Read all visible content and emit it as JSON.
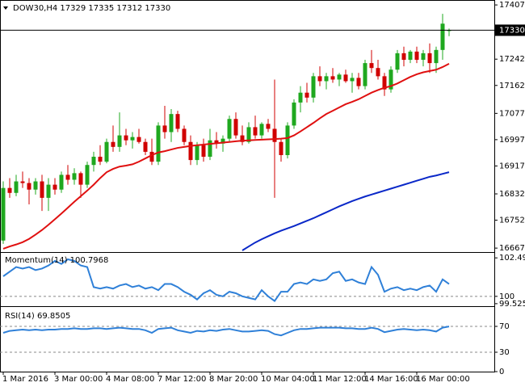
{
  "chart_data": [
    {
      "type": "candlestick",
      "title": "DOW30,H4  17329 17335 17312 17330",
      "categories": [
        "1 Mar 2016",
        null,
        null,
        null,
        null,
        null,
        null,
        null,
        "3 Mar 00:00",
        null,
        null,
        null,
        null,
        null,
        null,
        null,
        "4 Mar 08:00",
        null,
        null,
        null,
        null,
        null,
        null,
        null,
        "7 Mar 12:00",
        null,
        null,
        null,
        null,
        null,
        null,
        null,
        "8 Mar 20:00",
        null,
        null,
        null,
        null,
        null,
        null,
        null,
        "10 Mar 04:00",
        null,
        null,
        null,
        null,
        null,
        null,
        null,
        "11 Mar 12:00",
        null,
        null,
        null,
        null,
        null,
        null,
        null,
        "14 Mar 16:00",
        null,
        null,
        null,
        null,
        null,
        null,
        null,
        "16 Mar 00:00",
        null,
        null,
        null,
        null,
        null
      ],
      "open": [
        16690,
        16850,
        16835,
        16870,
        16865,
        16845,
        16870,
        16820,
        16860,
        16845,
        16890,
        16875,
        16895,
        16860,
        16920,
        16945,
        16930,
        16990,
        16975,
        17010,
        16995,
        17005,
        16990,
        16960,
        16930,
        17040,
        17020,
        17075,
        17030,
        16990,
        16935,
        16980,
        16945,
        16995,
        16985,
        17000,
        17060,
        17010,
        16990,
        17035,
        17010,
        17045,
        17030,
        16990,
        16950,
        17040,
        17110,
        17140,
        17125,
        17190,
        17175,
        17190,
        17180,
        17195,
        17175,
        17185,
        17160,
        17230,
        17215,
        17190,
        17150,
        17210,
        17260,
        17240,
        17265,
        17240,
        17260,
        17230,
        17270,
        17329
      ],
      "high": [
        16870,
        16880,
        16890,
        16900,
        16880,
        16880,
        16890,
        16880,
        16880,
        16900,
        16920,
        16910,
        16900,
        16930,
        16960,
        16980,
        17000,
        17040,
        17080,
        17030,
        17020,
        17030,
        17000,
        17000,
        17050,
        17100,
        17090,
        17085,
        17040,
        17010,
        16990,
        17000,
        17030,
        17020,
        17010,
        17070,
        17080,
        17040,
        17050,
        17070,
        17050,
        17060,
        17180,
        17000,
        17050,
        17120,
        17160,
        17170,
        17200,
        17220,
        17200,
        17215,
        17200,
        17210,
        17200,
        17200,
        17240,
        17270,
        17240,
        17200,
        17220,
        17270,
        17280,
        17270,
        17280,
        17270,
        17290,
        17280,
        17380,
        17335
      ],
      "low": [
        16680,
        16820,
        16825,
        16850,
        16800,
        16830,
        16780,
        16780,
        16830,
        16835,
        16860,
        16860,
        16820,
        16850,
        16900,
        16920,
        16925,
        16960,
        16960,
        16980,
        16970,
        16985,
        16950,
        16920,
        16920,
        17000,
        16990,
        17020,
        16980,
        16920,
        16920,
        16930,
        16935,
        16970,
        16960,
        16990,
        17000,
        16980,
        16985,
        17000,
        17000,
        17020,
        16820,
        16930,
        16940,
        17030,
        17080,
        17110,
        17110,
        17160,
        17150,
        17170,
        17160,
        17170,
        17140,
        17150,
        17150,
        17200,
        17180,
        17130,
        17140,
        17200,
        17220,
        17230,
        17230,
        17220,
        17200,
        17200,
        17240,
        17312
      ],
      "close": [
        16850,
        16835,
        16870,
        16865,
        16845,
        16870,
        16820,
        16860,
        16845,
        16890,
        16875,
        16895,
        16860,
        16920,
        16945,
        16930,
        16990,
        16975,
        17010,
        16995,
        17005,
        16990,
        16960,
        16930,
        17040,
        17020,
        17075,
        17030,
        16990,
        16935,
        16980,
        16945,
        16995,
        16985,
        17000,
        17060,
        17010,
        16990,
        17035,
        17010,
        17045,
        17030,
        16990,
        16950,
        17040,
        17110,
        17140,
        17125,
        17190,
        17175,
        17190,
        17180,
        17195,
        17175,
        17185,
        17160,
        17230,
        17215,
        17190,
        17150,
        17210,
        17260,
        17240,
        17265,
        17240,
        17260,
        17230,
        17270,
        17350,
        17330
      ],
      "up_color": "#1fa81f",
      "down_color": "#d00000",
      "series": [
        {
          "color": "#e01010",
          "values": [
            16665,
            16672,
            16678,
            16685,
            16695,
            16708,
            16722,
            16738,
            16755,
            16772,
            16790,
            16808,
            16825,
            16842,
            16860,
            16880,
            16898,
            16908,
            16915,
            16918,
            16922,
            16930,
            16940,
            16950,
            16958,
            16962,
            16967,
            16972,
            16975,
            16978,
            16980,
            16982,
            16984,
            16986,
            16988,
            16990,
            16992,
            16994,
            16995,
            16996,
            16997,
            16998,
            16999,
            17000,
            17002,
            17010,
            17022,
            17035,
            17048,
            17062,
            17075,
            17085,
            17095,
            17105,
            17112,
            17120,
            17130,
            17140,
            17148,
            17155,
            17160,
            17168,
            17178,
            17188,
            17196,
            17202,
            17206,
            17210,
            17218,
            17228
          ]
        },
        {
          "color": "#0a28c8",
          "values": [
            null,
            null,
            null,
            null,
            null,
            null,
            null,
            null,
            null,
            null,
            null,
            null,
            null,
            null,
            null,
            null,
            null,
            null,
            null,
            null,
            null,
            null,
            null,
            null,
            null,
            null,
            null,
            null,
            null,
            null,
            null,
            null,
            null,
            null,
            null,
            null,
            null,
            16660,
            16672,
            16684,
            16694,
            16703,
            16712,
            16720,
            16727,
            16734,
            16742,
            16750,
            16758,
            16767,
            16776,
            16785,
            16794,
            16802,
            16810,
            16817,
            16824,
            16830,
            16836,
            16842,
            16848,
            16854,
            16860,
            16866,
            16872,
            16878,
            16884,
            16888,
            16893,
            16898
          ]
        }
      ],
      "last_price": 17330,
      "ylim": [
        16655,
        17422
      ],
      "yticks": [
        17407,
        17242,
        17162,
        17077,
        16997,
        16917,
        16832,
        16752,
        16667
      ]
    },
    {
      "type": "line",
      "title": "Momentum(14) 100.7968",
      "series": [
        {
          "color": "#2f80d8",
          "values": [
            101.3,
            101.6,
            101.9,
            101.8,
            101.9,
            101.7,
            101.8,
            102.0,
            102.3,
            102.1,
            102.4,
            102.3,
            102.0,
            101.9,
            100.6,
            100.5,
            100.6,
            100.5,
            100.7,
            100.8,
            100.6,
            100.7,
            100.5,
            100.6,
            100.4,
            100.8,
            100.8,
            100.6,
            100.3,
            100.1,
            99.8,
            100.2,
            100.4,
            100.1,
            100.0,
            100.3,
            100.2,
            100.0,
            99.9,
            99.8,
            100.4,
            100.0,
            99.7,
            100.3,
            100.3,
            100.8,
            100.9,
            100.8,
            101.1,
            101.0,
            101.1,
            101.5,
            101.6,
            101.0,
            101.1,
            100.9,
            100.8,
            101.9,
            101.4,
            100.3,
            100.5,
            100.6,
            100.4,
            100.5,
            100.4,
            100.6,
            100.7,
            100.3,
            101.1,
            100.7968
          ]
        }
      ],
      "levels": [
        100
      ],
      "ylim": [
        99.363,
        102.818
      ],
      "yticks": [
        102.4932,
        100,
        99.5253
      ]
    },
    {
      "type": "line",
      "title": "RSI(14) 69.8505",
      "series": [
        {
          "color": "#2f80d8",
          "values": [
            60,
            63,
            64,
            65,
            64,
            65,
            64,
            65,
            65,
            66,
            66,
            67,
            66,
            66,
            67,
            67,
            66,
            67,
            68,
            67,
            66,
            66,
            64,
            60,
            66,
            67,
            68,
            64,
            62,
            60,
            63,
            62,
            64,
            63,
            65,
            66,
            64,
            62,
            62,
            63,
            64,
            63,
            58,
            56,
            60,
            64,
            66,
            66,
            67,
            68,
            68,
            68,
            68,
            67,
            67,
            66,
            66,
            68,
            66,
            61,
            63,
            65,
            66,
            65,
            64,
            65,
            64,
            62,
            68,
            69.8505
          ]
        }
      ],
      "levels": [
        70,
        30
      ],
      "ylim": [
        0,
        100
      ],
      "yticks": [
        70,
        30,
        0
      ]
    }
  ]
}
